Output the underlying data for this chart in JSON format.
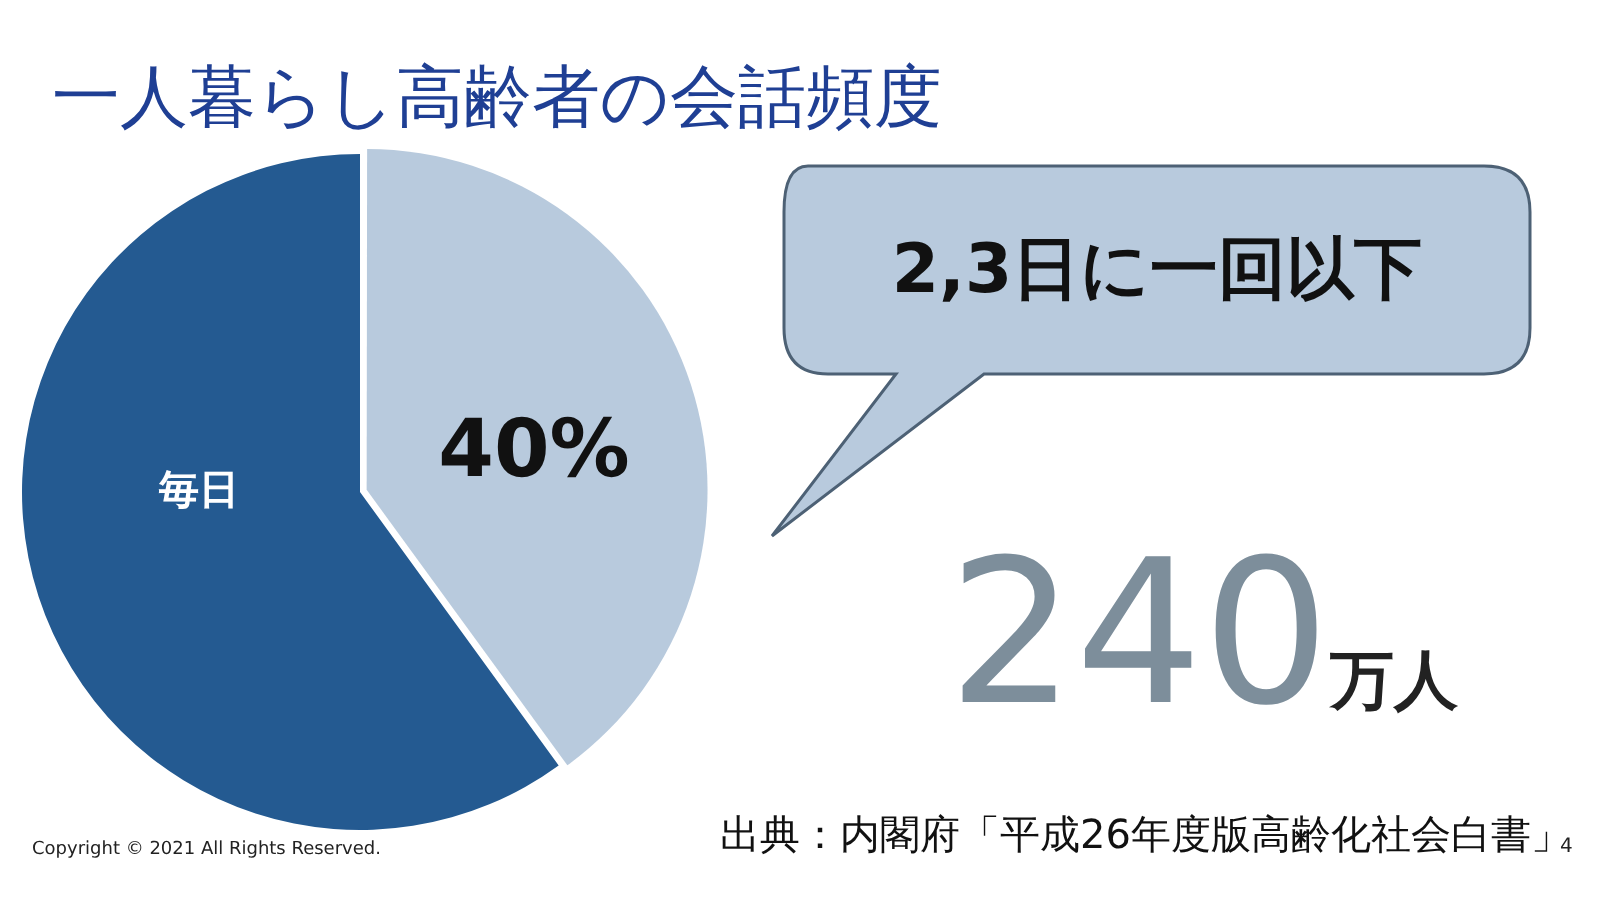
{
  "chart_data": {
    "type": "pie",
    "title": "一人暮らし高齢者の会話頻度",
    "categories": [
      "2,3日に一回以下",
      "毎日"
    ],
    "values": [
      40,
      60
    ],
    "colors": [
      "#b8cadd",
      "#245a91"
    ],
    "value_labels": [
      "40%",
      null
    ],
    "annotations": [
      "240万人",
      "出典：内閣府「平成26年度版高齢化社会白書」",
      "Copyright © 2021 All Rights Reserved.",
      "4"
    ],
    "legend": false
  }
}
